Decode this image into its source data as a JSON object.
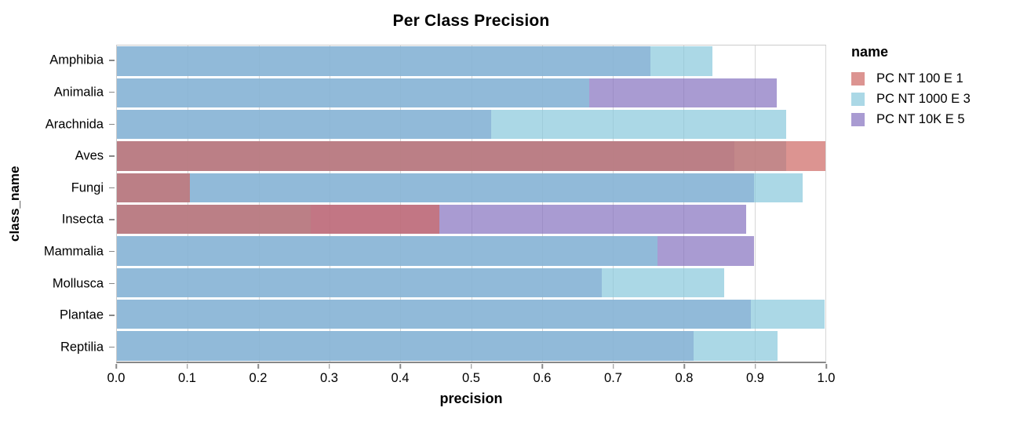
{
  "chart_data": {
    "type": "bar",
    "orientation": "horizontal",
    "title": "Per Class Precision",
    "xlabel": "precision",
    "ylabel": "class_name",
    "legend_title": "name",
    "legend_position": "right",
    "grid": true,
    "xlim": [
      0.0,
      1.0
    ],
    "xticks": [
      "0.0",
      "0.1",
      "0.2",
      "0.3",
      "0.4",
      "0.5",
      "0.6",
      "0.7",
      "0.8",
      "0.9",
      "1.0"
    ],
    "categories": [
      "Amphibia",
      "Animalia",
      "Arachnida",
      "Aves",
      "Fungi",
      "Insecta",
      "Mammalia",
      "Mollusca",
      "Plantae",
      "Reptilia"
    ],
    "bar_opacity": 0.7,
    "series": [
      {
        "name": "PC NT 100 E 1",
        "color": "#cd6663",
        "z": 3,
        "values": [
          null,
          null,
          null,
          1.0,
          0.103,
          0.455,
          null,
          null,
          null,
          null
        ]
      },
      {
        "name": "PC NT 1000 E 3",
        "color": "#87c7db",
        "z": 2,
        "values": [
          0.84,
          0.667,
          0.945,
          0.945,
          0.968,
          0.273,
          0.763,
          0.857,
          0.999,
          0.932
        ]
      },
      {
        "name": "PC NT 10K E 5",
        "color": "#8570bf",
        "z": 1,
        "values": [
          0.753,
          0.931,
          0.528,
          0.872,
          0.899,
          0.888,
          0.899,
          0.684,
          0.895,
          0.814
        ]
      }
    ]
  }
}
